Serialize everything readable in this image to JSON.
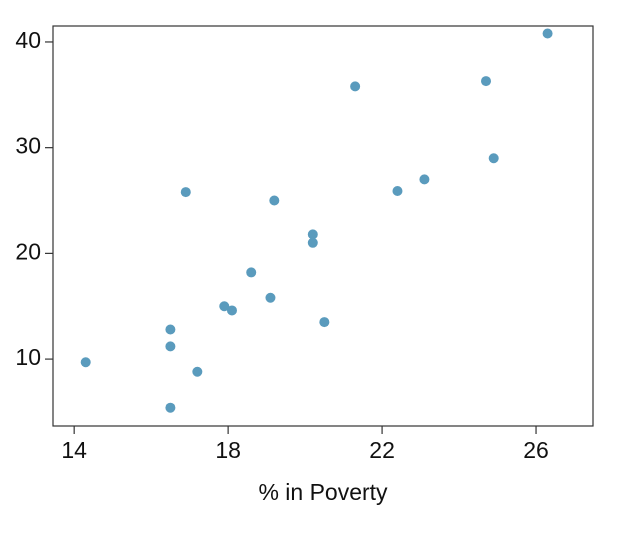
{
  "chart_data": {
    "type": "scatter",
    "x_label": "% in Poverty",
    "color": "#5a9bbd",
    "x": [
      14.3,
      16.5,
      16.5,
      16.5,
      16.9,
      17.2,
      17.9,
      18.1,
      18.6,
      19.1,
      19.2,
      20.2,
      20.2,
      20.5,
      21.3,
      22.4,
      23.1,
      24.7,
      24.9,
      26.3
    ],
    "values": [
      9.7,
      12.8,
      11.2,
      5.4,
      25.8,
      8.8,
      15.0,
      14.6,
      18.2,
      15.8,
      25.0,
      21.8,
      21.0,
      13.5,
      35.8,
      25.9,
      27.0,
      36.3,
      29.0,
      40.8
    ],
    "xlim": [
      13.45,
      27.48
    ],
    "ylim": [
      3.67,
      41.51
    ],
    "xticks": [
      14,
      18,
      22,
      26
    ],
    "yticks": [
      10,
      20,
      30,
      40
    ]
  }
}
